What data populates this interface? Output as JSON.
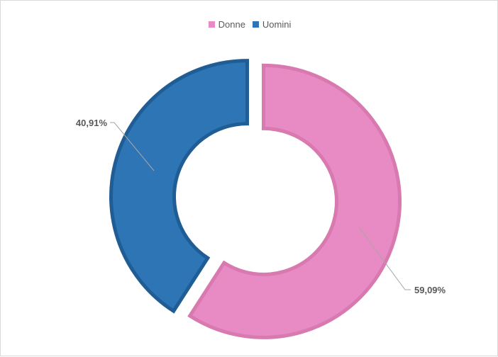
{
  "chart_data": {
    "type": "pie",
    "variant": "donut",
    "categories": [
      "Donne",
      "Uomini"
    ],
    "values": [
      59.09,
      40.91
    ],
    "labels": [
      "59,09%",
      "40,91%"
    ],
    "colors": [
      "#E88BC4",
      "#2E75B6"
    ],
    "edge_colors": [
      "#D879B0",
      "#1F5D94"
    ],
    "legend_position": "top",
    "exploded": true,
    "start_angle_deg": 0,
    "direction": "clockwise"
  }
}
